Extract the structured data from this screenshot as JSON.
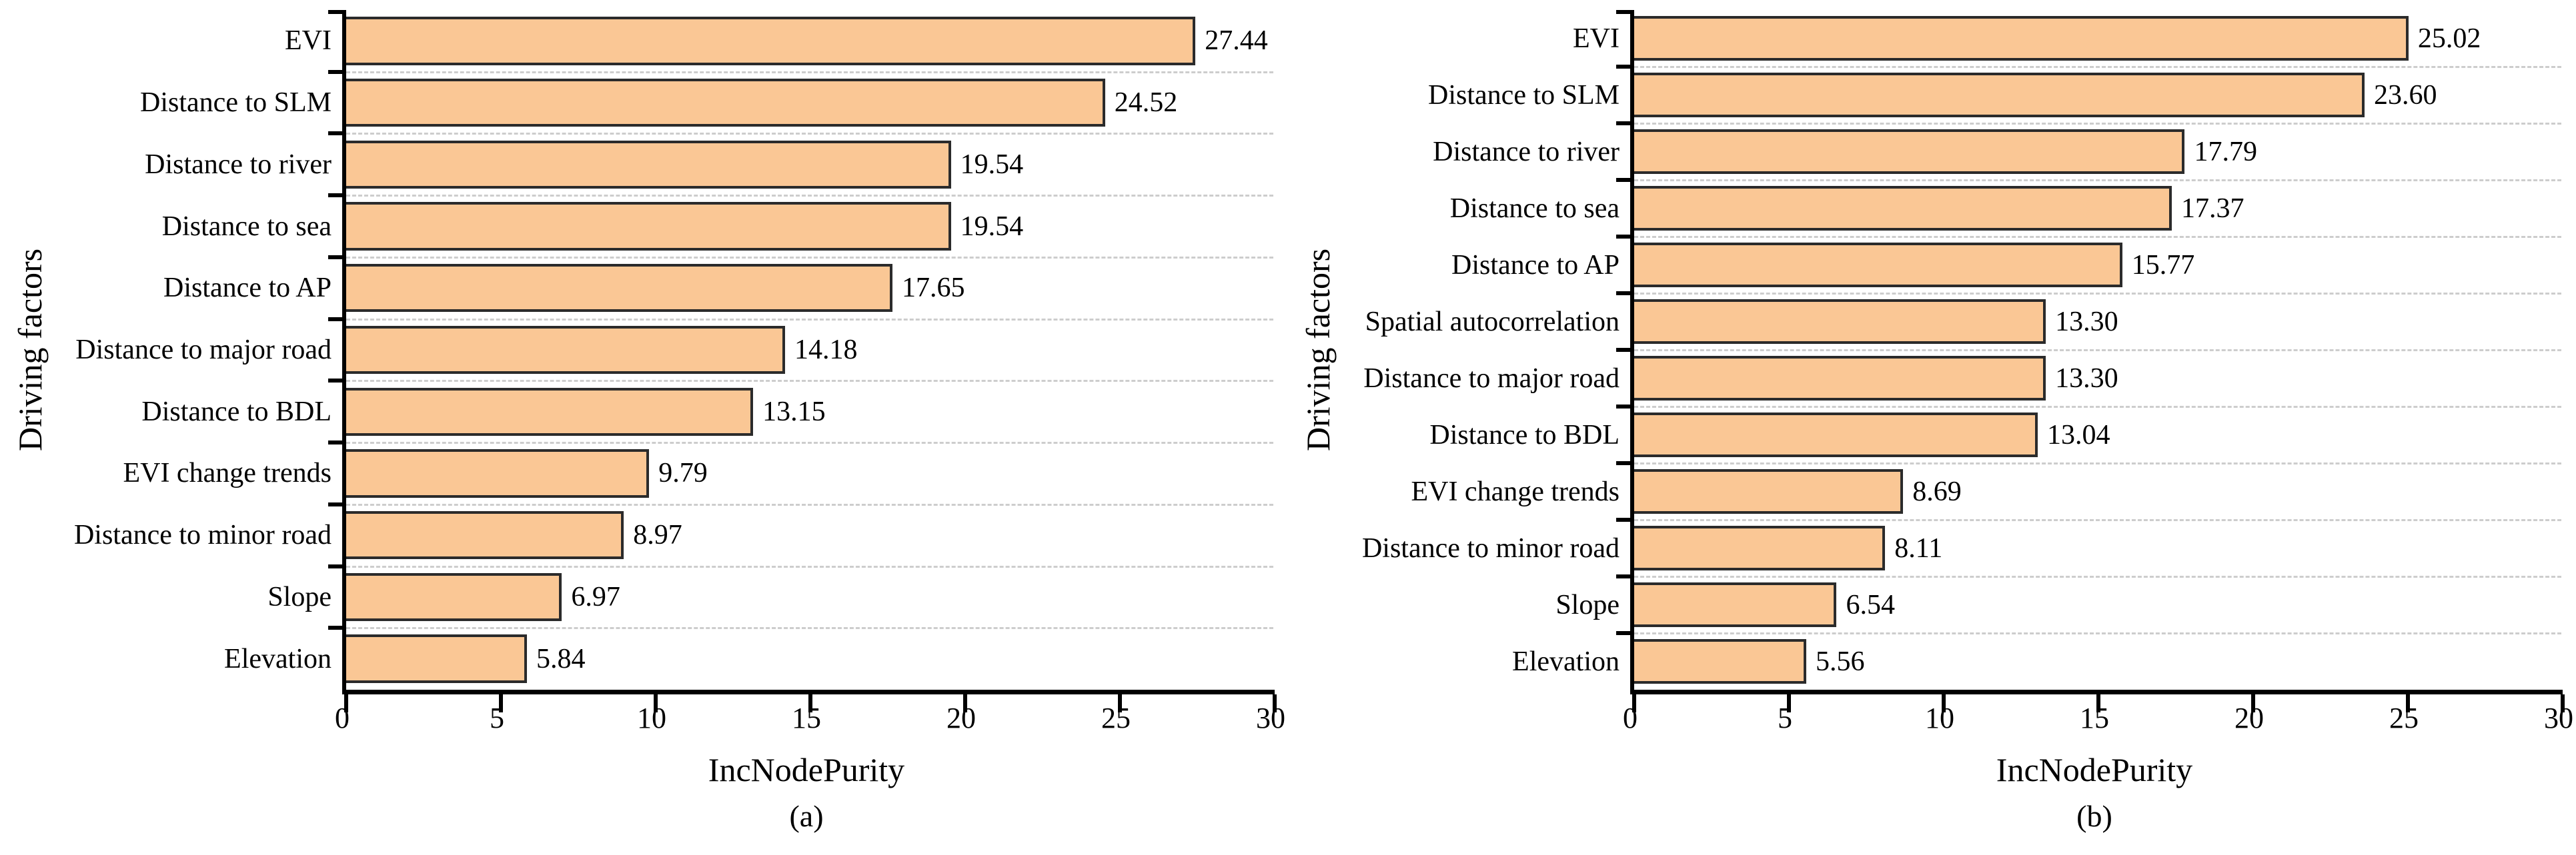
{
  "figure": {
    "bar_fill": "#FAC795",
    "bar_border": "#2B2B2B",
    "axis_color": "#000000",
    "grid_color": "#CDCDCD",
    "text_color": "#000000"
  },
  "chart_data": [
    {
      "type": "bar",
      "orientation": "horizontal",
      "panel_label": "(a)",
      "title": "",
      "xlabel": "IncNodePurity",
      "ylabel": "Driving factors",
      "xlim": [
        0,
        30
      ],
      "xticks": [
        "0",
        "5",
        "10",
        "15",
        "20",
        "25",
        "30"
      ],
      "xtick_values": [
        0,
        5,
        10,
        15,
        20,
        25,
        30
      ],
      "grid": "dashed horizontal separators between bars",
      "legend": "none",
      "categories": [
        "EVI",
        "Distance to SLM",
        "Distance to river",
        "Distance to sea",
        "Distance to AP",
        "Distance to major road",
        "Distance to BDL",
        "EVI change trends",
        "Distance to minor road",
        "Slope",
        "Elevation"
      ],
      "values": [
        27.44,
        24.52,
        19.54,
        19.54,
        17.65,
        14.18,
        13.15,
        9.79,
        8.97,
        6.97,
        5.84
      ],
      "value_labels": [
        "27.44",
        "24.52",
        "19.54",
        "19.54",
        "17.65",
        "14.18",
        "13.15",
        "9.79",
        "8.97",
        "6.97",
        "5.84"
      ]
    },
    {
      "type": "bar",
      "orientation": "horizontal",
      "panel_label": "(b)",
      "title": "",
      "xlabel": "IncNodePurity",
      "ylabel": "Driving factors",
      "xlim": [
        0,
        30
      ],
      "xticks": [
        "0",
        "5",
        "10",
        "15",
        "20",
        "25",
        "30"
      ],
      "xtick_values": [
        0,
        5,
        10,
        15,
        20,
        25,
        30
      ],
      "grid": "dashed horizontal separators between bars",
      "legend": "none",
      "categories": [
        "EVI",
        "Distance to SLM",
        "Distance to river",
        "Distance to sea",
        "Distance to AP",
        "Spatial autocorrelation",
        "Distance to major road",
        "Distance to BDL",
        "EVI change trends",
        "Distance to minor road",
        "Slope",
        "Elevation"
      ],
      "values": [
        25.02,
        23.6,
        17.79,
        17.37,
        15.77,
        13.3,
        13.3,
        13.04,
        8.69,
        8.11,
        6.54,
        5.56
      ],
      "value_labels": [
        "25.02",
        "23.60",
        "17.79",
        "17.37",
        "15.77",
        "13.30",
        "13.30",
        "13.04",
        "8.69",
        "8.11",
        "6.54",
        "5.56"
      ]
    }
  ]
}
